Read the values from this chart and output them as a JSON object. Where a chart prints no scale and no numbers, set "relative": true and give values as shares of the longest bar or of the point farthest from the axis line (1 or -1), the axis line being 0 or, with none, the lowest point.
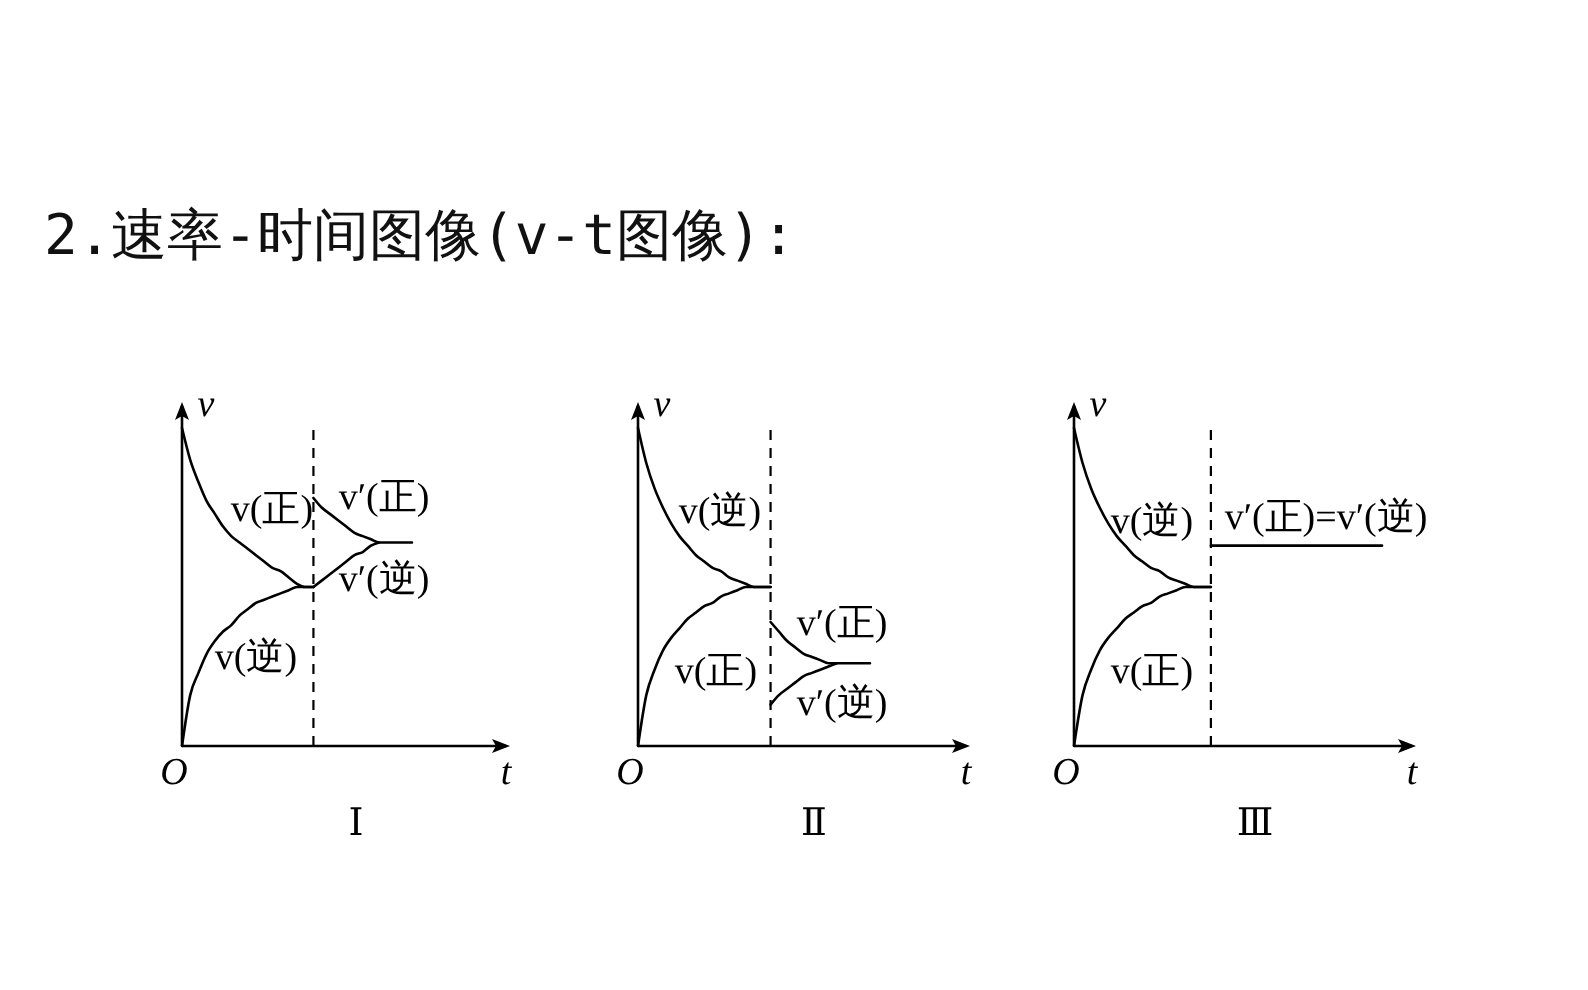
{
  "chart_data": [
    {
      "type": "line",
      "title": "2.速率-时间图像(v-t图像):",
      "xlabel": "t",
      "ylabel": "v",
      "relative": true,
      "categories": [
        null,
        null,
        null,
        null,
        null,
        null,
        null,
        null,
        null,
        null,
        null,
        null,
        null,
        null,
        null,
        null,
        null,
        null,
        null,
        null,
        null,
        null,
        null,
        null,
        null,
        null,
        null,
        null,
        null
      ],
      "annotations": [
        "O",
        "Ⅰ"
      ],
      "series": [
        {
          "name": "v(正)",
          "color": "#000000",
          "values": [
            1,
            0.9,
            0.83,
            0.77,
            0.73,
            0.69,
            0.66,
            0.64,
            0.62,
            0.6,
            0.58,
            0.56,
            0.55,
            0.53,
            0.51,
            0.5,
            0.5,
            null,
            null,
            null,
            null,
            null,
            null,
            null,
            null,
            null,
            null,
            null,
            null
          ]
        },
        {
          "name": "v(逆)",
          "color": "#000000",
          "values": [
            0,
            0.16,
            0.23,
            0.29,
            0.33,
            0.36,
            0.38,
            0.41,
            0.43,
            0.45,
            0.46,
            0.47,
            0.48,
            0.49,
            0.5,
            0.5,
            0.5,
            null,
            null,
            null,
            null,
            null,
            null,
            null,
            null,
            null,
            null,
            null,
            null
          ]
        },
        {
          "name": "v′(正)",
          "color": "#000000",
          "values": [
            null,
            null,
            null,
            null,
            null,
            null,
            null,
            null,
            null,
            null,
            null,
            null,
            null,
            null,
            null,
            null,
            0.78,
            0.75,
            0.73,
            0.71,
            0.69,
            0.67,
            0.66,
            0.65,
            0.64,
            0.64,
            0.64,
            0.64,
            0.64
          ]
        },
        {
          "name": "v′(逆)",
          "color": "#000000",
          "values": [
            null,
            null,
            null,
            null,
            null,
            null,
            null,
            null,
            null,
            null,
            null,
            null,
            null,
            null,
            null,
            null,
            0.5,
            0.52,
            0.54,
            0.56,
            0.58,
            0.6,
            0.61,
            0.63,
            0.64,
            null,
            null,
            null,
            null
          ]
        }
      ]
    },
    {
      "type": "line",
      "xlabel": "t",
      "ylabel": "v",
      "relative": true,
      "categories": [
        null,
        null,
        null,
        null,
        null,
        null,
        null,
        null,
        null,
        null,
        null,
        null,
        null,
        null,
        null,
        null,
        null,
        null,
        null,
        null,
        null,
        null,
        null,
        null,
        null,
        null,
        null,
        null,
        null
      ],
      "annotations": [
        "O",
        "Ⅱ"
      ],
      "series": [
        {
          "name": "v(逆)",
          "color": "#000000",
          "values": [
            1,
            0.89,
            0.81,
            0.75,
            0.7,
            0.66,
            0.63,
            0.6,
            0.58,
            0.56,
            0.55,
            0.53,
            0.52,
            0.51,
            0.5,
            0.5,
            0.5,
            null,
            null,
            null,
            null,
            null,
            null,
            null,
            null,
            null,
            null,
            null,
            null
          ]
        },
        {
          "name": "v(正)",
          "color": "#000000",
          "values": [
            0,
            0.16,
            0.24,
            0.3,
            0.34,
            0.37,
            0.4,
            0.42,
            0.44,
            0.45,
            0.47,
            0.48,
            0.49,
            0.5,
            0.5,
            0.5,
            0.5,
            null,
            null,
            null,
            null,
            null,
            null,
            null,
            null,
            null,
            null,
            null,
            null
          ]
        },
        {
          "name": "v′(正)",
          "color": "#000000",
          "values": [
            null,
            null,
            null,
            null,
            null,
            null,
            null,
            null,
            null,
            null,
            null,
            null,
            null,
            null,
            null,
            null,
            0.39,
            0.36,
            0.33,
            0.31,
            0.29,
            0.28,
            0.27,
            0.26,
            0.26,
            0.26,
            0.26,
            0.26,
            0.26
          ]
        },
        {
          "name": "v′(逆)",
          "color": "#000000",
          "values": [
            null,
            null,
            null,
            null,
            null,
            null,
            null,
            null,
            null,
            null,
            null,
            null,
            null,
            null,
            null,
            null,
            0.13,
            0.16,
            0.18,
            0.2,
            0.22,
            0.23,
            0.24,
            0.25,
            0.26,
            null,
            null,
            null,
            null
          ]
        }
      ]
    },
    {
      "type": "line",
      "xlabel": "t",
      "ylabel": "v",
      "relative": true,
      "categories": [
        null,
        null,
        null,
        null,
        null,
        null,
        null,
        null,
        null,
        null,
        null,
        null,
        null,
        null,
        null,
        null,
        null,
        null,
        null,
        null,
        null,
        null,
        null,
        null,
        null,
        null,
        null,
        null,
        null,
        null,
        null,
        null,
        null,
        null,
        null,
        null,
        null
      ],
      "annotations": [
        "O",
        "Ⅲ"
      ],
      "series": [
        {
          "name": "v(逆)",
          "color": "#000000",
          "values": [
            1,
            0.89,
            0.81,
            0.75,
            0.7,
            0.66,
            0.63,
            0.6,
            0.58,
            0.56,
            0.55,
            0.53,
            0.52,
            0.51,
            0.5,
            0.5,
            0.5,
            null,
            null,
            null,
            null,
            null,
            null,
            null,
            null,
            null,
            null,
            null,
            null,
            null,
            null,
            null,
            null,
            null,
            null,
            null,
            null
          ]
        },
        {
          "name": "v(正)",
          "color": "#000000",
          "values": [
            0,
            0.16,
            0.24,
            0.3,
            0.34,
            0.37,
            0.4,
            0.42,
            0.44,
            0.45,
            0.47,
            0.48,
            0.49,
            0.5,
            0.5,
            0.5,
            0.5,
            null,
            null,
            null,
            null,
            null,
            null,
            null,
            null,
            null,
            null,
            null,
            null,
            null,
            null,
            null,
            null,
            null,
            null,
            null,
            null
          ]
        },
        {
          "name": "v′(正)=v′(逆)",
          "color": "#000000",
          "values": [
            null,
            null,
            null,
            null,
            null,
            null,
            null,
            null,
            null,
            null,
            null,
            null,
            null,
            null,
            null,
            null,
            0.63,
            0.63,
            0.63,
            0.63,
            0.63,
            0.63,
            0.63,
            0.63,
            0.63,
            0.63,
            0.63,
            0.63,
            0.63,
            0.63,
            0.63,
            0.63,
            0.63,
            0.63,
            0.63,
            0.63,
            0.63
          ]
        }
      ]
    }
  ]
}
